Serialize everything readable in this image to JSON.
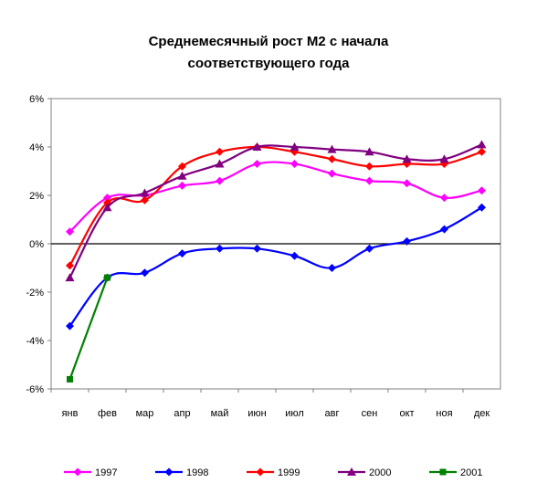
{
  "chart_data": {
    "type": "line",
    "title_lines": [
      "Среднемесячный рост М2 с начала",
      "соответствующего года"
    ],
    "categories": [
      "янв",
      "фев",
      "мар",
      "апр",
      "май",
      "июн",
      "июл",
      "авг",
      "сен",
      "окт",
      "ноя",
      "дек"
    ],
    "y_ticks": [
      "6%",
      "4%",
      "2%",
      "0%",
      "-2%",
      "-4%",
      "-6%"
    ],
    "ylim": [
      -6,
      6
    ],
    "grid": false,
    "legend_position": "bottom",
    "series": [
      {
        "name": "1997",
        "color": "#ff00ff",
        "marker": "diamond",
        "values": [
          0.5,
          1.9,
          2.0,
          2.4,
          2.6,
          3.3,
          3.3,
          2.9,
          2.6,
          2.5,
          1.9,
          2.2
        ]
      },
      {
        "name": "1998",
        "color": "#0000ff",
        "marker": "diamond",
        "values": [
          -3.4,
          -1.4,
          -1.2,
          -0.4,
          -0.2,
          -0.2,
          -0.5,
          -1.0,
          -0.2,
          0.1,
          0.6,
          1.5
        ]
      },
      {
        "name": "1999",
        "color": "#ff0000",
        "marker": "diamond",
        "values": [
          -0.9,
          1.7,
          1.8,
          3.2,
          3.8,
          4.0,
          3.8,
          3.5,
          3.2,
          3.3,
          3.3,
          3.8
        ]
      },
      {
        "name": "2000",
        "color": "#800080",
        "marker": "triangle",
        "values": [
          -1.4,
          1.5,
          2.1,
          2.8,
          3.3,
          4.0,
          4.0,
          3.9,
          3.8,
          3.5,
          3.5,
          4.1
        ]
      },
      {
        "name": "2001",
        "color": "#008000",
        "marker": "square",
        "values": [
          -5.6,
          -1.4,
          null,
          null,
          null,
          null,
          null,
          null,
          null,
          null,
          null,
          null
        ]
      }
    ]
  }
}
